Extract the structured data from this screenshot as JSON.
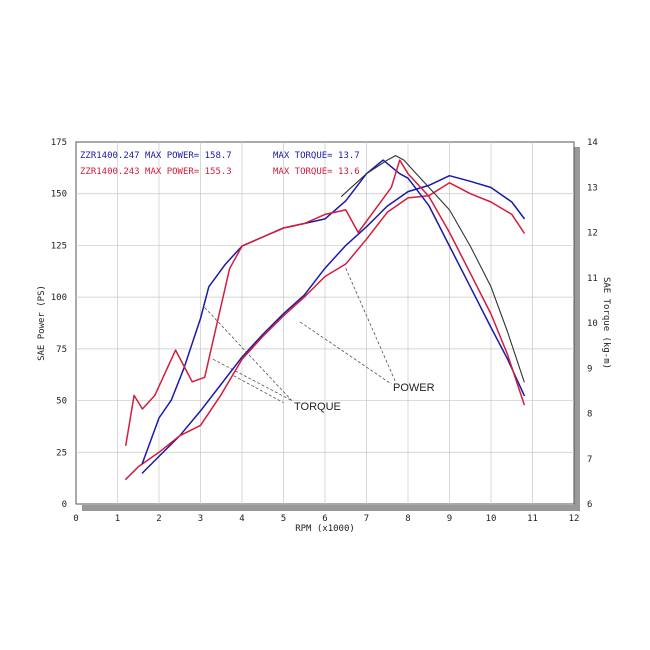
{
  "chart_data": {
    "type": "line",
    "xlabel": "RPM (x1000)",
    "ylabel_left": "SAE Power (PS)",
    "ylabel_right": "SAE Torque (kg-m)",
    "xlim": [
      0,
      12
    ],
    "x_ticks": [
      "0",
      "1",
      "2",
      "3",
      "4",
      "5",
      "6",
      "7",
      "8",
      "9",
      "10",
      "11",
      "12"
    ],
    "ylim_left": [
      0,
      175
    ],
    "y_left_ticks": [
      "0",
      "25",
      "50",
      "75",
      "100",
      "125",
      "150",
      "175"
    ],
    "ylim_right": [
      6,
      14
    ],
    "y_right_ticks": [
      "6",
      "7",
      "8",
      "9",
      "10",
      "11",
      "12",
      "13",
      "14"
    ],
    "grid": true,
    "legend": [
      {
        "text": "ZZR1400.247  MAX POWER= 158.7",
        "color": "#1a1aa8"
      },
      {
        "text": "ZZR1400.243  MAX POWER= 155.3",
        "color": "#d41c3c"
      },
      {
        "text": "MAX TORQUE= 13.7",
        "color": "#1a1aa8"
      },
      {
        "text": "MAX TORQUE= 13.6",
        "color": "#d41c3c"
      }
    ],
    "annotations": [
      {
        "text": "TORQUE",
        "x": 5.3,
        "y": 47
      },
      {
        "text": "POWER",
        "x": 7.7,
        "y": 55
      }
    ],
    "series": [
      {
        "key": "power_247",
        "axis": "left",
        "color": "#1a1aa8",
        "x": [
          1.6,
          2.0,
          2.5,
          3.0,
          3.5,
          4.0,
          4.5,
          5.0,
          5.5,
          6.0,
          6.5,
          7.0,
          7.5,
          8.0,
          8.5,
          9.0,
          9.5,
          10.0,
          10.5,
          10.8
        ],
        "y": [
          15,
          23,
          33,
          45,
          58,
          71,
          82,
          92,
          101,
          114,
          125,
          134,
          144,
          151,
          154,
          158.7,
          156,
          153,
          146,
          138
        ]
      },
      {
        "key": "power_243",
        "axis": "left",
        "color": "#d41c3c",
        "x": [
          1.2,
          1.5,
          2.0,
          2.5,
          3.0,
          3.5,
          4.0,
          4.5,
          5.0,
          5.5,
          6.0,
          6.5,
          7.0,
          7.5,
          8.0,
          8.5,
          9.0,
          9.5,
          10.0,
          10.5,
          10.8
        ],
        "y": [
          12,
          18,
          25,
          33,
          38,
          53,
          70,
          81,
          91,
          100,
          110,
          116,
          128,
          141,
          148,
          149,
          155.3,
          150,
          146,
          140,
          131
        ]
      },
      {
        "key": "torque_247",
        "axis": "right",
        "color": "#1a1aa8",
        "x": [
          1.6,
          1.8,
          2.0,
          2.3,
          2.6,
          3.0,
          3.2,
          3.6,
          4.0,
          4.5,
          5.0,
          5.5,
          6.0,
          6.5,
          7.0,
          7.4,
          7.8,
          8.0,
          8.5,
          9.0,
          9.5,
          10.0,
          10.4,
          10.8
        ],
        "y": [
          6.9,
          7.4,
          7.9,
          8.3,
          9.0,
          10.1,
          10.8,
          11.3,
          11.7,
          11.9,
          12.1,
          12.2,
          12.3,
          12.7,
          13.3,
          13.6,
          13.3,
          13.2,
          12.6,
          11.7,
          10.8,
          9.9,
          9.2,
          8.4
        ]
      },
      {
        "key": "torque_243",
        "axis": "right",
        "color": "#d41c3c",
        "x": [
          1.2,
          1.4,
          1.6,
          1.9,
          2.4,
          2.8,
          3.1,
          3.4,
          3.7,
          4.0,
          4.5,
          5.0,
          5.5,
          6.0,
          6.5,
          6.8,
          7.2,
          7.6,
          7.8,
          8.0,
          8.5,
          9.0,
          9.5,
          10.0,
          10.4,
          10.8
        ],
        "y": [
          7.3,
          8.4,
          8.1,
          8.4,
          9.4,
          8.7,
          8.8,
          10.0,
          11.2,
          11.7,
          11.9,
          12.1,
          12.2,
          12.4,
          12.5,
          12.0,
          12.5,
          13.0,
          13.6,
          13.3,
          12.8,
          12.0,
          11.1,
          10.2,
          9.3,
          8.2
        ]
      },
      {
        "key": "torque_ref",
        "axis": "right",
        "color": "#333333",
        "x": [
          6.4,
          7.0,
          7.5,
          7.7,
          7.9,
          8.2,
          8.6,
          9.0,
          9.5,
          10.0,
          10.4,
          10.8
        ],
        "y": [
          12.8,
          13.3,
          13.6,
          13.7,
          13.6,
          13.3,
          12.9,
          12.5,
          11.7,
          10.8,
          9.8,
          8.7
        ]
      }
    ]
  }
}
